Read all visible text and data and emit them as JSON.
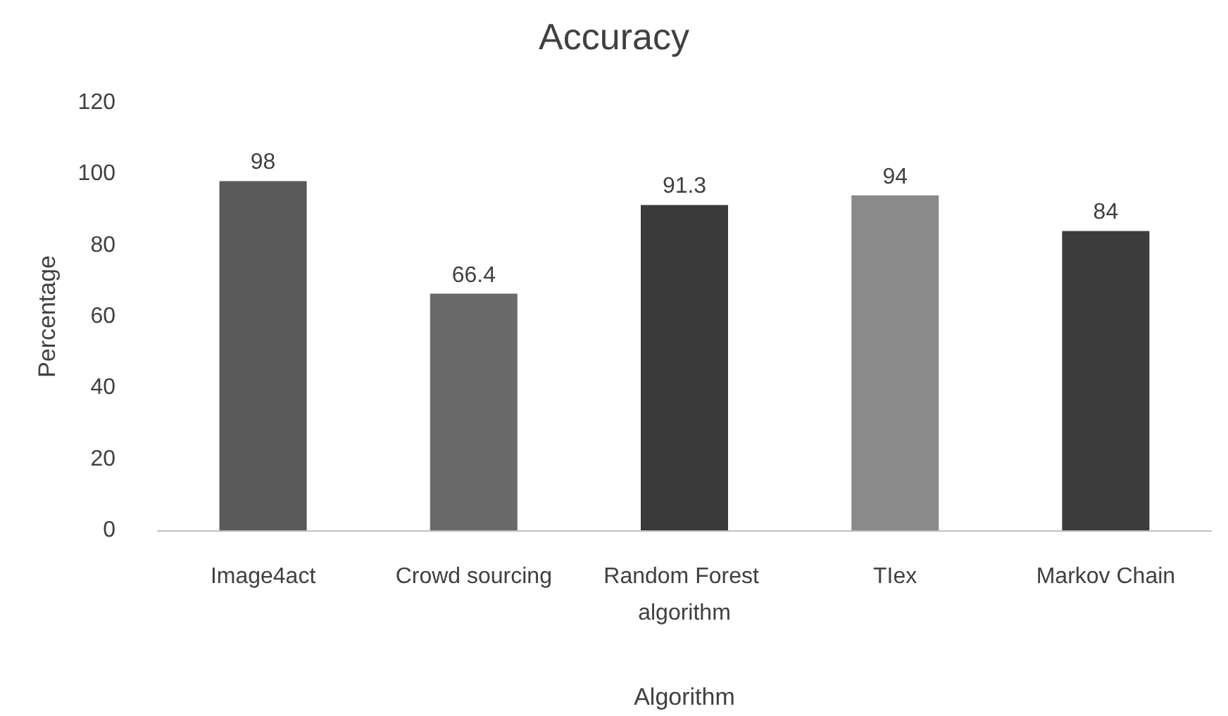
{
  "chart_data": {
    "type": "bar",
    "title": "Accuracy",
    "xlabel": "Algorithm",
    "ylabel": "Percentage",
    "categories": [
      "Image4act",
      "Crowd sourcing",
      "Random Forest algorithm",
      "TIex",
      "Markov Chain"
    ],
    "values": [
      98,
      66.4,
      91.3,
      94,
      84
    ],
    "colors": [
      "#5a5a5a",
      "#6a6a6a",
      "#3a3a3a",
      "#8a8a8a",
      "#3c3c3c"
    ],
    "ylim": [
      0,
      120
    ],
    "yticks": [
      0,
      20,
      40,
      60,
      80,
      100,
      120
    ],
    "grid": false,
    "data_labels": true
  }
}
